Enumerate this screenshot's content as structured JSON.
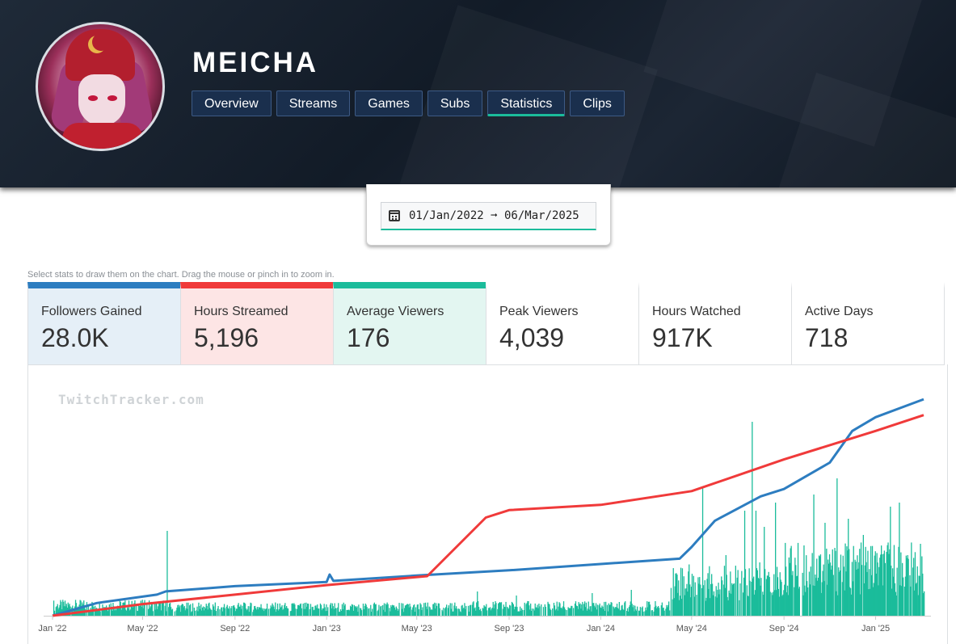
{
  "channel": {
    "name": "MEICHA"
  },
  "nav": {
    "tabs": [
      {
        "label": "Overview",
        "active": false
      },
      {
        "label": "Streams",
        "active": false
      },
      {
        "label": "Games",
        "active": false
      },
      {
        "label": "Subs",
        "active": false
      },
      {
        "label": "Statistics",
        "active": true
      },
      {
        "label": "Clips",
        "active": false
      }
    ]
  },
  "date_range": {
    "icon": "calendar-icon",
    "value": "01/Jan/2022 ➞ 06/Mar/2025"
  },
  "hint": "Select stats to draw them on the chart. Drag the mouse or pinch in to zoom in.",
  "stats": [
    {
      "label": "Followers Gained",
      "value": "28.0K",
      "selected": true,
      "accent": "#2d7dc0",
      "bg": "#e5eff7"
    },
    {
      "label": "Hours Streamed",
      "value": "5,196",
      "selected": true,
      "accent": "#f03a3a",
      "bg": "#fde5e5"
    },
    {
      "label": "Average Viewers",
      "value": "176",
      "selected": true,
      "accent": "#1bbc9b",
      "bg": "#e3f6f1"
    },
    {
      "label": "Peak Viewers",
      "value": "4,039",
      "selected": false,
      "accent": "#ffffff",
      "bg": "#ffffff"
    },
    {
      "label": "Hours Watched",
      "value": "917K",
      "selected": false,
      "accent": "#ffffff",
      "bg": "#ffffff"
    },
    {
      "label": "Active Days",
      "value": "718",
      "selected": false,
      "accent": "#ffffff",
      "bg": "#ffffff"
    }
  ],
  "watermark": "TwitchTracker.com",
  "chart_data": {
    "type": "line",
    "x_tick_labels": [
      "Jan '22",
      "May '22",
      "Sep '22",
      "Jan '23",
      "May '23",
      "Sep '23",
      "Jan '24",
      "May '24",
      "Sep '24",
      "Jan '25"
    ],
    "x_range": [
      "2022-01-01",
      "2025-03-06"
    ],
    "y_axis_shown": false,
    "grid": false,
    "series": [
      {
        "name": "Followers Gained",
        "kind": "cumulative-line",
        "color": "#2d7dc0",
        "points": [
          [
            "2022-01-01",
            0
          ],
          [
            "2022-03-01",
            1200
          ],
          [
            "2022-05-20",
            2000
          ],
          [
            "2022-06-01",
            2300
          ],
          [
            "2022-09-01",
            2800
          ],
          [
            "2023-01-01",
            3200
          ],
          [
            "2023-01-05",
            3900
          ],
          [
            "2023-01-10",
            3300
          ],
          [
            "2023-05-01",
            3800
          ],
          [
            "2023-09-01",
            4300
          ],
          [
            "2024-01-01",
            4900
          ],
          [
            "2024-04-15",
            5400
          ],
          [
            "2024-05-01",
            6500
          ],
          [
            "2024-06-01",
            9000
          ],
          [
            "2024-08-01",
            11300
          ],
          [
            "2024-09-01",
            12000
          ],
          [
            "2024-11-01",
            14500
          ],
          [
            "2024-12-01",
            17500
          ],
          [
            "2025-01-01",
            18800
          ],
          [
            "2025-03-06",
            20500
          ]
        ]
      },
      {
        "name": "Hours Streamed",
        "kind": "cumulative-line",
        "color": "#f03a3a",
        "points": [
          [
            "2022-01-01",
            0
          ],
          [
            "2022-05-01",
            1100
          ],
          [
            "2022-09-01",
            2000
          ],
          [
            "2023-01-01",
            2900
          ],
          [
            "2023-05-15",
            3750
          ],
          [
            "2023-08-01",
            9300
          ],
          [
            "2023-09-01",
            10000
          ],
          [
            "2024-01-01",
            10500
          ],
          [
            "2024-05-01",
            11800
          ],
          [
            "2024-09-01",
            14800
          ],
          [
            "2025-01-01",
            17500
          ],
          [
            "2025-03-06",
            19000
          ]
        ]
      },
      {
        "name": "Average Viewers",
        "kind": "daily-bars",
        "color": "#1bbc9b",
        "baseline_per_period": [
          {
            "from": "2022-01-01",
            "to": "2022-05-31",
            "typical": 12
          },
          {
            "from": "2022-06-01",
            "to": "2023-06-30",
            "typical": 10
          },
          {
            "from": "2023-07-01",
            "to": "2024-03-31",
            "typical": 11
          },
          {
            "from": "2024-04-01",
            "to": "2024-08-31",
            "typical": 40
          },
          {
            "from": "2024-09-01",
            "to": "2025-03-06",
            "typical": 55
          }
        ],
        "spikes": [
          [
            "2022-06-02",
            105
          ],
          [
            "2023-07-20",
            30
          ],
          [
            "2023-09-10",
            25
          ],
          [
            "2023-12-20",
            28
          ],
          [
            "2024-02-10",
            32
          ],
          [
            "2024-05-15",
            160
          ],
          [
            "2024-06-15",
            75
          ],
          [
            "2024-07-10",
            130
          ],
          [
            "2024-07-20",
            240
          ],
          [
            "2024-07-25",
            130
          ],
          [
            "2024-08-05",
            110
          ],
          [
            "2024-08-20",
            140
          ],
          [
            "2024-10-10",
            150
          ],
          [
            "2024-10-25",
            115
          ],
          [
            "2024-11-10",
            170
          ],
          [
            "2024-11-25",
            120
          ],
          [
            "2024-12-15",
            100
          ],
          [
            "2025-01-20",
            135
          ],
          [
            "2025-02-01",
            140
          ]
        ]
      }
    ]
  }
}
